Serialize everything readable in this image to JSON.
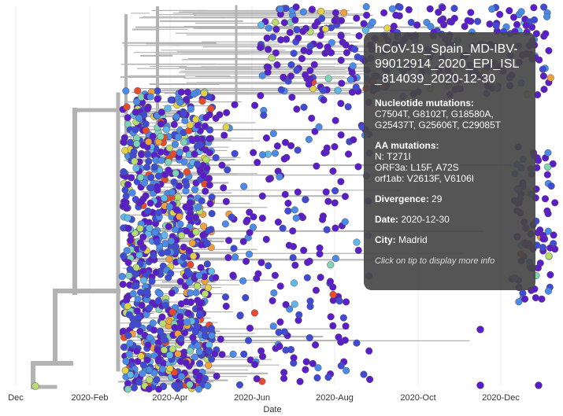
{
  "axis": {
    "title": "Date",
    "ticks": [
      "Dec",
      "2020-Feb",
      "2020-Apr",
      "2020-Jun",
      "2020-Aug",
      "2020-Oct",
      "2020-Dec"
    ]
  },
  "tooltip": {
    "strain": "hCoV-19_Spain_MD-IBV-99012914_2020_EPI_ISL_814039_2020-12-30",
    "nuc_heading": "Nucleotide mutations:",
    "nuc_text": "C7504T, G8102T, G18580A, G25437T, G25606T, C29085T",
    "aa_heading": "AA mutations:",
    "aa_lines": [
      "N: T271I",
      "ORF3a: L15F, A72S",
      "orf1ab: V2613F, V6106I"
    ],
    "divergence_label": "Divergence:",
    "divergence_value": "29",
    "date_label": "Date:",
    "date_value": "2020-12-30",
    "city_label": "City:",
    "city_value": "Madrid",
    "hint": "Click on tip to display more info"
  },
  "colors": {
    "branch": "#b3b3b3",
    "tip_palette": [
      "#5b1dc9",
      "#3f4ad6",
      "#4a8bea",
      "#5fb8e8",
      "#7fd3b6",
      "#b8dc6e",
      "#e3d14a",
      "#f2a03c",
      "#ea4a2c"
    ],
    "tooltip_bg": "#474747"
  }
}
